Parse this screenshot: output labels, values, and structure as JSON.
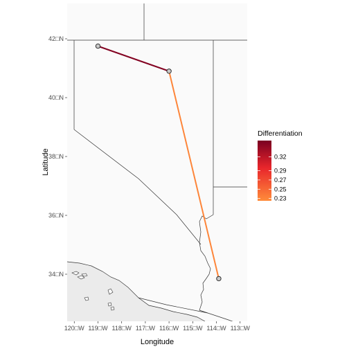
{
  "map": {
    "xlabel": "Longitude",
    "ylabel": "Latitude",
    "x_range": [
      -120.3,
      -112.7
    ],
    "y_range": [
      32.4,
      43.2
    ],
    "x_ticks": [
      {
        "value": -120,
        "label": "120□W"
      },
      {
        "value": -119,
        "label": "119□W"
      },
      {
        "value": -118,
        "label": "118□W"
      },
      {
        "value": -117,
        "label": "117□W"
      },
      {
        "value": -116,
        "label": "116□W"
      },
      {
        "value": -115,
        "label": "115□W"
      },
      {
        "value": -114,
        "label": "114□W"
      },
      {
        "value": -113,
        "label": "113□W"
      }
    ],
    "y_ticks": [
      {
        "value": 34,
        "label": "34□N"
      },
      {
        "value": 36,
        "label": "36□N"
      },
      {
        "value": 38,
        "label": "38□N"
      },
      {
        "value": 40,
        "label": "40□N"
      },
      {
        "value": 42,
        "label": "42□N"
      }
    ],
    "colors": {
      "panel_background": "#ebebeb",
      "land_fill": "#fafafa",
      "border_stroke": "#333333",
      "point_fill": "#c8c8c8",
      "point_stroke": "#1a1a1a"
    },
    "sites": [
      {
        "lon": -119.0,
        "lat": 41.75
      },
      {
        "lon": -116.0,
        "lat": 40.9
      },
      {
        "lon": -113.9,
        "lat": 33.85
      }
    ],
    "links": [
      {
        "from": 0,
        "to": 1,
        "value": 0.35
      },
      {
        "from": 1,
        "to": 2,
        "value": 0.23
      }
    ],
    "legend": {
      "title": "Differentiation",
      "placement": "right",
      "range": [
        0.225,
        0.355
      ],
      "color_low": "#ff8c3a",
      "color_mid": "#e8252b",
      "color_high": "#7a0021",
      "breaks": [
        {
          "value": 0.23,
          "label": "0.23"
        },
        {
          "value": 0.25,
          "label": "0.25"
        },
        {
          "value": 0.27,
          "label": "0.27"
        },
        {
          "value": 0.29,
          "label": "0.29"
        },
        {
          "value": 0.32,
          "label": "0.32"
        }
      ]
    }
  }
}
